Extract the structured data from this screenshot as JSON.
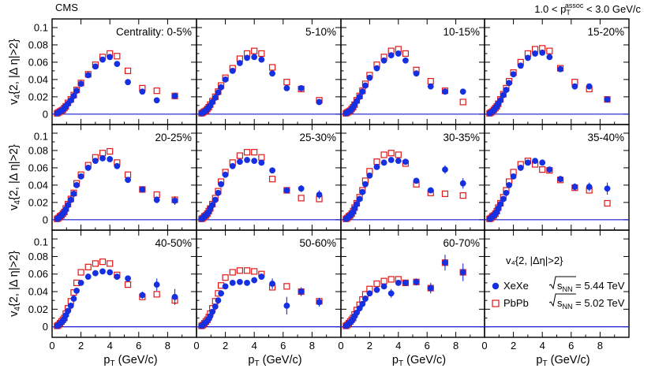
{
  "header": {
    "experiment": "CMS",
    "pt_assoc_low": "1.0",
    "pt_assoc_var": "p",
    "pt_assoc_sub": "T",
    "pt_assoc_sup": "assoc",
    "pt_assoc_high": "3.0 GeV/c"
  },
  "colors": {
    "xexe": "#1530e0",
    "pbpb": "#e01818",
    "axis": "#000000",
    "zero_line": "#1a1ad0"
  },
  "chart_data": {
    "type": "scatter",
    "title": "",
    "xlabel": {
      "var": "p",
      "sub": "T",
      "unit": " (GeV/c)"
    },
    "ylabel": {
      "var": "v",
      "sub": "4",
      "rest": "{2, |Δ η|>2}"
    },
    "xlim": [
      0,
      10
    ],
    "ylim": [
      -0.012,
      0.11
    ],
    "x_ticks": [
      0,
      2,
      4,
      6,
      8
    ],
    "x_tick_labels": [
      "0",
      "2",
      "4",
      "6",
      "8"
    ],
    "y_ticks": [
      0,
      0.02,
      0.04,
      0.06,
      0.08,
      0.1
    ],
    "y_tick_labels": [
      "0",
      "0.02",
      "0.04",
      "0.06",
      "0.08",
      "0.1"
    ],
    "legend": {
      "title": "v₄{2, |Δη|>2}",
      "entries": [
        {
          "series": "XeXe",
          "label": "XeXe",
          "energy_var": "s",
          "energy_sub": "NN",
          "energy_value": " = 5.44 TeV"
        },
        {
          "series": "PbPb",
          "label": "PbPb",
          "energy_var": "s",
          "energy_sub": "NN",
          "energy_value": " = 5.02 TeV"
        }
      ],
      "location": "bottom-right panel"
    },
    "pt_bins": [
      0.35,
      0.45,
      0.55,
      0.65,
      0.75,
      0.85,
      0.95,
      1.1,
      1.3,
      1.5,
      1.7,
      2.0,
      2.5,
      3.0,
      3.5,
      4.0,
      4.5,
      5.25,
      6.25,
      7.25,
      8.5
    ],
    "panels": [
      {
        "label": "Centrality: 0-5%",
        "XeXe": [
          0.001,
          0.002,
          0.003,
          0.004,
          0.005,
          0.007,
          0.009,
          0.012,
          0.016,
          0.021,
          0.027,
          0.035,
          0.045,
          0.055,
          0.063,
          0.066,
          0.058,
          0.037,
          0.026,
          0.016,
          0.021
        ],
        "PbPb": [
          0.001,
          0.002,
          0.003,
          0.004,
          0.005,
          0.007,
          0.009,
          0.013,
          0.017,
          0.022,
          0.028,
          0.036,
          0.046,
          0.057,
          0.066,
          0.07,
          0.067,
          0.05,
          0.03,
          0.027,
          0.021
        ],
        "XeXe_err": [
          0,
          0,
          0,
          0,
          0,
          0,
          0,
          0,
          0,
          0,
          0,
          0,
          0,
          0,
          0,
          0,
          0,
          0,
          0,
          0,
          0
        ]
      },
      {
        "label": "5-10%",
        "XeXe": [
          0.001,
          0.002,
          0.003,
          0.004,
          0.006,
          0.008,
          0.01,
          0.014,
          0.019,
          0.025,
          0.031,
          0.04,
          0.05,
          0.059,
          0.065,
          0.066,
          0.063,
          0.047,
          0.03,
          0.03,
          0.014
        ],
        "PbPb": [
          0.001,
          0.002,
          0.003,
          0.004,
          0.006,
          0.008,
          0.011,
          0.015,
          0.02,
          0.026,
          0.033,
          0.042,
          0.053,
          0.064,
          0.07,
          0.073,
          0.07,
          0.054,
          0.037,
          0.029,
          0.016
        ],
        "XeXe_err": [
          0,
          0,
          0,
          0,
          0,
          0,
          0,
          0,
          0,
          0,
          0,
          0,
          0,
          0,
          0,
          0,
          0,
          0,
          0,
          0,
          0
        ]
      },
      {
        "label": "10-15%",
        "XeXe": [
          0.001,
          0.002,
          0.003,
          0.004,
          0.006,
          0.008,
          0.011,
          0.015,
          0.02,
          0.026,
          0.033,
          0.042,
          0.053,
          0.062,
          0.068,
          0.07,
          0.062,
          0.047,
          0.032,
          0.026,
          0.026
        ],
        "PbPb": [
          0.001,
          0.002,
          0.003,
          0.004,
          0.006,
          0.008,
          0.011,
          0.016,
          0.021,
          0.027,
          0.035,
          0.045,
          0.057,
          0.066,
          0.073,
          0.075,
          0.07,
          0.051,
          0.038,
          0.027,
          0.014
        ],
        "XeXe_err": [
          0,
          0,
          0,
          0,
          0,
          0,
          0,
          0,
          0,
          0,
          0,
          0,
          0,
          0,
          0,
          0,
          0,
          0,
          0,
          0,
          0
        ]
      },
      {
        "label": "15-20%",
        "XeXe": [
          0.001,
          0.002,
          0.003,
          0.005,
          0.007,
          0.009,
          0.012,
          0.016,
          0.022,
          0.028,
          0.036,
          0.046,
          0.056,
          0.065,
          0.07,
          0.071,
          0.066,
          0.052,
          0.032,
          0.032,
          0.017
        ],
        "PbPb": [
          0.001,
          0.002,
          0.003,
          0.005,
          0.007,
          0.009,
          0.012,
          0.017,
          0.023,
          0.03,
          0.038,
          0.048,
          0.06,
          0.07,
          0.075,
          0.076,
          0.073,
          0.053,
          0.037,
          0.029,
          0.017
        ],
        "XeXe_err": [
          0,
          0,
          0,
          0,
          0,
          0,
          0,
          0,
          0,
          0,
          0,
          0,
          0,
          0,
          0,
          0,
          0,
          0,
          0,
          0,
          0.003
        ]
      },
      {
        "label": "20-25%",
        "XeXe": [
          0.001,
          0.002,
          0.004,
          0.005,
          0.007,
          0.009,
          0.012,
          0.017,
          0.023,
          0.03,
          0.04,
          0.05,
          0.06,
          0.068,
          0.071,
          0.07,
          0.062,
          0.046,
          0.035,
          0.023,
          0.022
        ],
        "PbPb": [
          0.001,
          0.002,
          0.004,
          0.005,
          0.007,
          0.009,
          0.013,
          0.018,
          0.024,
          0.031,
          0.042,
          0.052,
          0.063,
          0.072,
          0.077,
          0.079,
          0.066,
          0.052,
          0.035,
          0.029,
          0.023
        ],
        "XeXe_err": [
          0,
          0,
          0,
          0,
          0,
          0,
          0,
          0,
          0,
          0,
          0,
          0,
          0,
          0,
          0,
          0,
          0,
          0,
          0,
          0.004,
          0.005
        ]
      },
      {
        "label": "25-30%",
        "XeXe": [
          0.001,
          0.002,
          0.004,
          0.005,
          0.007,
          0.009,
          0.013,
          0.017,
          0.023,
          0.031,
          0.041,
          0.052,
          0.062,
          0.067,
          0.069,
          0.068,
          0.066,
          0.057,
          0.034,
          0.036,
          0.029
        ],
        "PbPb": [
          0.001,
          0.002,
          0.004,
          0.005,
          0.007,
          0.01,
          0.013,
          0.018,
          0.025,
          0.033,
          0.044,
          0.055,
          0.066,
          0.074,
          0.078,
          0.078,
          0.072,
          0.047,
          0.034,
          0.025,
          0.024
        ],
        "XeXe_err": [
          0,
          0,
          0,
          0,
          0,
          0,
          0,
          0,
          0,
          0,
          0,
          0,
          0,
          0,
          0,
          0,
          0,
          0,
          0,
          0.004,
          0.005
        ]
      },
      {
        "label": "30-35%",
        "XeXe": [
          0.001,
          0.002,
          0.004,
          0.005,
          0.007,
          0.009,
          0.013,
          0.018,
          0.024,
          0.032,
          0.041,
          0.051,
          0.061,
          0.066,
          0.069,
          0.068,
          0.067,
          0.045,
          0.034,
          0.058,
          0.042
        ],
        "PbPb": [
          0.001,
          0.002,
          0.004,
          0.005,
          0.007,
          0.01,
          0.014,
          0.019,
          0.026,
          0.034,
          0.045,
          0.056,
          0.067,
          0.075,
          0.077,
          0.075,
          0.065,
          0.041,
          0.031,
          0.03,
          0.028
        ],
        "XeXe_err": [
          0,
          0,
          0,
          0,
          0,
          0,
          0,
          0,
          0,
          0,
          0,
          0,
          0,
          0,
          0,
          0,
          0,
          0,
          0,
          0.005,
          0.006
        ]
      },
      {
        "label": "35-40%",
        "XeXe": [
          0.001,
          0.002,
          0.004,
          0.005,
          0.007,
          0.009,
          0.013,
          0.018,
          0.024,
          0.031,
          0.04,
          0.05,
          0.06,
          0.066,
          0.068,
          0.066,
          0.058,
          0.047,
          0.038,
          0.038,
          0.036
        ],
        "PbPb": [
          0.001,
          0.002,
          0.004,
          0.005,
          0.007,
          0.01,
          0.014,
          0.019,
          0.026,
          0.034,
          0.044,
          0.055,
          0.064,
          0.068,
          0.064,
          0.058,
          0.057,
          0.046,
          0.037,
          0.034,
          0.019
        ],
        "XeXe_err": [
          0,
          0,
          0,
          0,
          0,
          0,
          0,
          0,
          0,
          0,
          0,
          0,
          0,
          0,
          0,
          0,
          0,
          0,
          0.004,
          0.005,
          0.007
        ]
      },
      {
        "label": "40-50%",
        "XeXe": [
          0.001,
          0.002,
          0.004,
          0.005,
          0.007,
          0.009,
          0.013,
          0.018,
          0.024,
          0.032,
          0.041,
          0.05,
          0.057,
          0.061,
          0.063,
          0.062,
          0.057,
          0.055,
          0.036,
          0.048,
          0.034
        ],
        "PbPb": [
          0.001,
          0.002,
          0.004,
          0.006,
          0.008,
          0.01,
          0.015,
          0.021,
          0.029,
          0.039,
          0.05,
          0.062,
          0.068,
          0.072,
          0.074,
          0.072,
          0.059,
          0.048,
          0.034,
          0.037,
          0.03
        ],
        "XeXe_err": [
          0,
          0,
          0,
          0,
          0,
          0,
          0,
          0,
          0,
          0,
          0,
          0,
          0,
          0,
          0,
          0,
          0,
          0,
          0.004,
          0.007,
          0.009
        ]
      },
      {
        "label": "50-60%",
        "XeXe": [
          0.001,
          0.002,
          0.004,
          0.005,
          0.007,
          0.009,
          0.012,
          0.017,
          0.023,
          0.03,
          0.038,
          0.046,
          0.05,
          0.051,
          0.05,
          0.053,
          0.057,
          0.049,
          0.024,
          0.04,
          0.028
        ],
        "PbPb": [
          0.001,
          0.002,
          0.004,
          0.006,
          0.008,
          0.011,
          0.015,
          0.021,
          0.029,
          0.038,
          0.047,
          0.056,
          0.062,
          0.064,
          0.064,
          0.063,
          0.06,
          0.045,
          0.046,
          0.04,
          0.029
        ],
        "XeXe_err": [
          0,
          0,
          0,
          0,
          0,
          0,
          0,
          0,
          0,
          0,
          0,
          0,
          0,
          0,
          0,
          0,
          0,
          0.006,
          0.01,
          0.005,
          0.005
        ]
      },
      {
        "label": "60-70%",
        "XeXe": [
          0.001,
          0.002,
          0.004,
          0.005,
          0.007,
          0.009,
          0.012,
          0.016,
          0.021,
          0.026,
          0.032,
          0.038,
          0.042,
          0.046,
          0.038,
          0.05,
          0.05,
          0.051,
          0.044,
          0.073,
          0.062
        ],
        "PbPb": [
          0.001,
          0.002,
          0.004,
          0.006,
          0.008,
          0.01,
          0.014,
          0.019,
          0.025,
          0.031,
          0.037,
          0.043,
          0.049,
          0.052,
          0.054,
          0.054,
          0.05,
          0.051,
          0.044,
          0.073,
          0.062
        ],
        "XeXe_err": [
          0,
          0,
          0,
          0,
          0,
          0,
          0,
          0,
          0,
          0,
          0,
          0,
          0,
          0,
          0.005,
          0,
          0,
          0.004,
          0.006,
          0.009,
          0.01
        ]
      }
    ]
  }
}
